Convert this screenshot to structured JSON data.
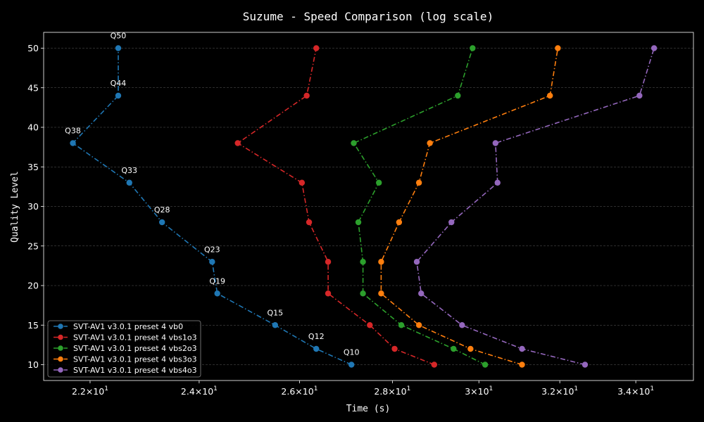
{
  "chart_data": {
    "type": "line",
    "title": "Suzume - Speed Comparison (log scale)",
    "xlabel": "Time (s)",
    "ylabel": "Quality Level",
    "xscale": "log",
    "xlim": [
      21.2,
      35.6
    ],
    "ylim": [
      8,
      52
    ],
    "x_ticks": [
      22,
      24,
      26,
      28,
      30,
      32,
      34
    ],
    "x_tick_labels": [
      {
        "base": "2.2",
        "mult": "×",
        "exp_base": "10",
        "exp": "1"
      },
      {
        "base": "2.4",
        "mult": "×",
        "exp_base": "10",
        "exp": "1"
      },
      {
        "base": "2.6",
        "mult": "×",
        "exp_base": "10",
        "exp": "1"
      },
      {
        "base": "2.8",
        "mult": "×",
        "exp_base": "10",
        "exp": "1"
      },
      {
        "base": "3",
        "mult": "×",
        "exp_base": "10",
        "exp": "1"
      },
      {
        "base": "3.2",
        "mult": "×",
        "exp_base": "10",
        "exp": "1"
      },
      {
        "base": "3.4",
        "mult": "×",
        "exp_base": "10",
        "exp": "1"
      }
    ],
    "y_ticks": [
      10,
      15,
      20,
      25,
      30,
      35,
      40,
      45,
      50
    ],
    "y_tick_labels": [
      "10",
      "15",
      "20",
      "25",
      "30",
      "35",
      "40",
      "45",
      "50"
    ],
    "grid": true,
    "legend_position": "lower-left",
    "series": [
      {
        "name": "SVT-AV1 v3.0.1 preset 4 vb0",
        "color": "#1f77b4",
        "points": [
          {
            "y": 10,
            "x": 27.1
          },
          {
            "y": 12,
            "x": 26.35
          },
          {
            "y": 15,
            "x": 25.5
          },
          {
            "y": 19,
            "x": 24.35
          },
          {
            "y": 23,
            "x": 24.25
          },
          {
            "y": 28,
            "x": 23.3
          },
          {
            "y": 33,
            "x": 22.7
          },
          {
            "y": 38,
            "x": 21.7
          },
          {
            "y": 44,
            "x": 22.5
          },
          {
            "y": 50,
            "x": 22.5
          }
        ],
        "point_labels": [
          "Q10",
          "Q12",
          "Q15",
          "Q19",
          "Q23",
          "Q28",
          "Q33",
          "Q38",
          "Q44",
          "Q50"
        ]
      },
      {
        "name": "SVT-AV1 v3.0.1 preset 4 vbs1o3",
        "color": "#d62728",
        "points": [
          {
            "y": 10,
            "x": 28.95
          },
          {
            "y": 12,
            "x": 28.05
          },
          {
            "y": 15,
            "x": 27.5
          },
          {
            "y": 19,
            "x": 26.6
          },
          {
            "y": 23,
            "x": 26.6
          },
          {
            "y": 28,
            "x": 26.2
          },
          {
            "y": 33,
            "x": 26.05
          },
          {
            "y": 38,
            "x": 24.75
          },
          {
            "y": 44,
            "x": 26.15
          },
          {
            "y": 50,
            "x": 26.35
          }
        ]
      },
      {
        "name": "SVT-AV1 v3.0.1 preset 4 vbs2o3",
        "color": "#2ca02c",
        "points": [
          {
            "y": 10,
            "x": 30.15
          },
          {
            "y": 12,
            "x": 29.4
          },
          {
            "y": 15,
            "x": 28.2
          },
          {
            "y": 19,
            "x": 27.35
          },
          {
            "y": 23,
            "x": 27.35
          },
          {
            "y": 28,
            "x": 27.25
          },
          {
            "y": 33,
            "x": 27.7
          },
          {
            "y": 38,
            "x": 27.15
          },
          {
            "y": 44,
            "x": 29.5
          },
          {
            "y": 50,
            "x": 29.85
          }
        ]
      },
      {
        "name": "SVT-AV1 v3.0.1 preset 4 vbs3o3",
        "color": "#ff7f0e",
        "points": [
          {
            "y": 10,
            "x": 31.05
          },
          {
            "y": 12,
            "x": 29.8
          },
          {
            "y": 15,
            "x": 28.6
          },
          {
            "y": 19,
            "x": 27.75
          },
          {
            "y": 23,
            "x": 27.75
          },
          {
            "y": 28,
            "x": 28.15
          },
          {
            "y": 33,
            "x": 28.6
          },
          {
            "y": 38,
            "x": 28.85
          },
          {
            "y": 44,
            "x": 31.75
          },
          {
            "y": 50,
            "x": 31.95
          }
        ]
      },
      {
        "name": "SVT-AV1 v3.0.1 preset 4 vbs4o3",
        "color": "#9467bd",
        "points": [
          {
            "y": 10,
            "x": 32.65
          },
          {
            "y": 12,
            "x": 31.05
          },
          {
            "y": 15,
            "x": 29.6
          },
          {
            "y": 19,
            "x": 28.65
          },
          {
            "y": 23,
            "x": 28.55
          },
          {
            "y": 28,
            "x": 29.35
          },
          {
            "y": 33,
            "x": 30.45
          },
          {
            "y": 38,
            "x": 30.4
          },
          {
            "y": 44,
            "x": 34.1
          },
          {
            "y": 50,
            "x": 34.5
          }
        ]
      }
    ]
  },
  "style": {
    "background": "#000000",
    "axes_edge": "#ffffff",
    "grid_color": "#5a5a5a",
    "text_color": "#ffffff",
    "legend_edge": "#8a8a8a"
  }
}
